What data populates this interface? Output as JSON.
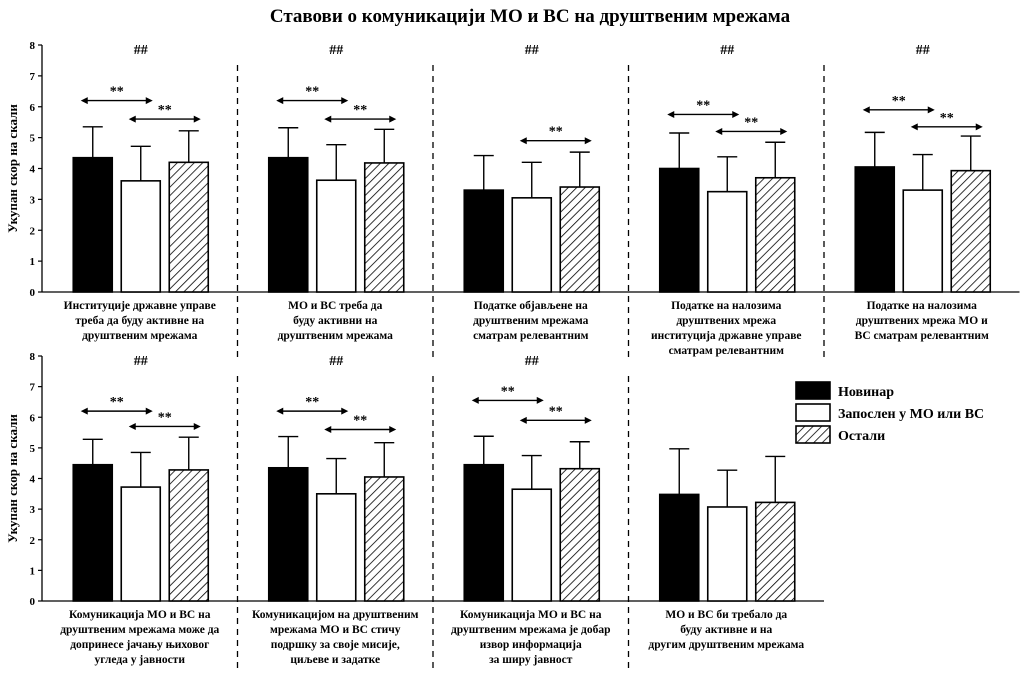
{
  "title": "Ставови о комуникацији МО и ВС на друштвеним мрежама",
  "chart_data": {
    "type": "bar",
    "ylabel": "Укупан скор на скали",
    "ylim": [
      0,
      8
    ],
    "yticks": [
      0,
      1,
      2,
      3,
      4,
      5,
      6,
      7,
      8
    ],
    "legend_position": "right",
    "series": [
      {
        "name": "Новинар",
        "fill": "#000000"
      },
      {
        "name": "Запослен у МО или ВС",
        "fill": "#ffffff"
      },
      {
        "name": "Остали",
        "fill": "hatch"
      }
    ],
    "panels": [
      {
        "row": 0,
        "label": [
          "Институције државне управе",
          "треба да буду активне на",
          "друштвеним мрежама"
        ],
        "values": [
          4.35,
          3.6,
          4.2
        ],
        "errors": [
          5.35,
          4.72,
          5.22
        ],
        "group_sig": "##",
        "brackets": [
          {
            "from": 0,
            "to": 1,
            "label": "**",
            "y": 6.2
          },
          {
            "from": 1,
            "to": 2,
            "label": "**",
            "y": 5.6
          }
        ]
      },
      {
        "row": 0,
        "label": [
          "МО и ВС треба да",
          "буду активни на",
          "друштвеним мрежама"
        ],
        "values": [
          4.35,
          3.62,
          4.18
        ],
        "errors": [
          5.32,
          4.77,
          5.27
        ],
        "group_sig": "##",
        "brackets": [
          {
            "from": 0,
            "to": 1,
            "label": "**",
            "y": 6.2
          },
          {
            "from": 1,
            "to": 2,
            "label": "**",
            "y": 5.6
          }
        ]
      },
      {
        "row": 0,
        "label": [
          "Податке објављене на",
          "друштвеним мрежама",
          "сматрам релевантним"
        ],
        "values": [
          3.3,
          3.05,
          3.4
        ],
        "errors": [
          4.42,
          4.2,
          4.53
        ],
        "group_sig": "##",
        "brackets": [
          {
            "from": 1,
            "to": 2,
            "label": "**",
            "y": 4.9
          }
        ]
      },
      {
        "row": 0,
        "label": [
          "Податке на налозима",
          "друштвених мрежа",
          "институција државне управе",
          "сматрам релевантним"
        ],
        "values": [
          4.0,
          3.25,
          3.7
        ],
        "errors": [
          5.15,
          4.38,
          4.85
        ],
        "group_sig": "##",
        "brackets": [
          {
            "from": 0,
            "to": 1,
            "label": "**",
            "y": 5.75
          },
          {
            "from": 1,
            "to": 2,
            "label": "**",
            "y": 5.2
          }
        ]
      },
      {
        "row": 0,
        "label": [
          "Податке на налозима",
          "друштвених мрежа МО и",
          "ВС сматрам релевантним"
        ],
        "values": [
          4.05,
          3.3,
          3.93
        ],
        "errors": [
          5.17,
          4.45,
          5.05
        ],
        "group_sig": "##",
        "brackets": [
          {
            "from": 0,
            "to": 1,
            "label": "**",
            "y": 5.9
          },
          {
            "from": 1,
            "to": 2,
            "label": "**",
            "y": 5.35
          }
        ]
      },
      {
        "row": 1,
        "label": [
          "Комуникација МО и ВС на",
          "друштвеним мрежама може да",
          "допринесе јачању њиховог",
          "угледа у јавности"
        ],
        "values": [
          4.45,
          3.72,
          4.28
        ],
        "errors": [
          5.28,
          4.85,
          5.35
        ],
        "group_sig": "##",
        "brackets": [
          {
            "from": 0,
            "to": 1,
            "label": "**",
            "y": 6.2
          },
          {
            "from": 1,
            "to": 2,
            "label": "**",
            "y": 5.7
          }
        ]
      },
      {
        "row": 1,
        "label": [
          "Комуникацијом на друштвеним",
          "мрежама МО и ВС стичу",
          "подршку за своје мисије,",
          "циљеве и задатке"
        ],
        "values": [
          4.35,
          3.5,
          4.05
        ],
        "errors": [
          5.37,
          4.65,
          5.17
        ],
        "group_sig": "##",
        "brackets": [
          {
            "from": 0,
            "to": 1,
            "label": "**",
            "y": 6.2
          },
          {
            "from": 1,
            "to": 2,
            "label": "**",
            "y": 5.6
          }
        ]
      },
      {
        "row": 1,
        "label": [
          "Комуникација МО и ВС на",
          "друштвеним мрежама је добар",
          "извор информација",
          "за ширу јавност"
        ],
        "values": [
          4.45,
          3.65,
          4.32
        ],
        "errors": [
          5.38,
          4.75,
          5.2
        ],
        "group_sig": "##",
        "brackets": [
          {
            "from": 0,
            "to": 1,
            "label": "**",
            "y": 6.55
          },
          {
            "from": 1,
            "to": 2,
            "label": "**",
            "y": 5.9
          }
        ]
      },
      {
        "row": 1,
        "label": [
          "МО и ВС би требало да",
          "буду активне и на",
          "другим друштвеним мрежама"
        ],
        "values": [
          3.48,
          3.07,
          3.22
        ],
        "errors": [
          4.97,
          4.27,
          4.72
        ],
        "group_sig": "",
        "brackets": []
      }
    ]
  },
  "legend": {
    "items": [
      {
        "name": "Новинар",
        "fill": "#000000"
      },
      {
        "name": "Запослен у МО или ВС",
        "fill": "#ffffff"
      },
      {
        "name": "Остали",
        "fill": "hatch"
      }
    ]
  }
}
